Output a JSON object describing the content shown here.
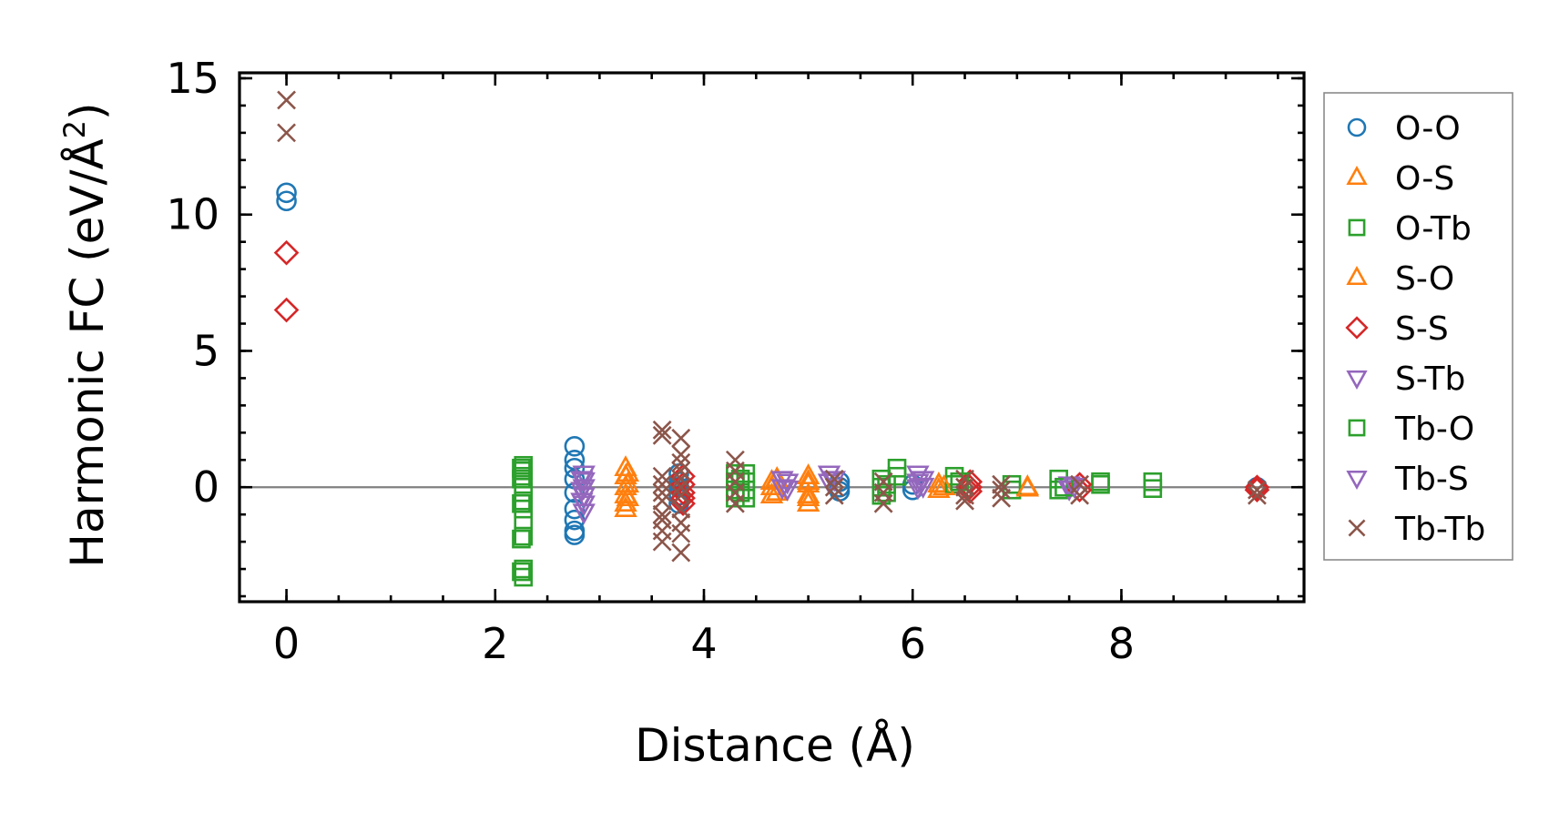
{
  "chart_data": {
    "type": "scatter",
    "title": "",
    "xlabel": "Distance (Å)",
    "ylabel": "Harmonic FC (eV/Å²)",
    "ylabel_parts": [
      "Harmonic FC (eV/Å",
      "2",
      ")"
    ],
    "xlim": [
      -0.45,
      9.75
    ],
    "ylim": [
      -4.2,
      15.2
    ],
    "xticks": [
      0,
      2,
      4,
      6,
      8
    ],
    "yticks": [
      0,
      5,
      10,
      15
    ],
    "x_minor_step": 0.5,
    "y_minor_step": 1,
    "zero_line": true,
    "grid": false,
    "legend_position": "outside-right",
    "series": [
      {
        "name": "O-O",
        "marker": "circle",
        "filled": false,
        "color": "#1f77b4",
        "points": [
          [
            0,
            10.8
          ],
          [
            0,
            10.5
          ],
          [
            2.76,
            1.5
          ],
          [
            2.76,
            1.0
          ],
          [
            2.76,
            0.7
          ],
          [
            2.76,
            0.3
          ],
          [
            2.76,
            -0.2
          ],
          [
            2.76,
            -0.8
          ],
          [
            2.76,
            -1.2
          ],
          [
            2.76,
            -1.6
          ],
          [
            2.76,
            -1.75
          ],
          [
            3.76,
            0.5
          ],
          [
            3.76,
            0.2
          ],
          [
            3.76,
            0.0
          ],
          [
            3.76,
            -0.3
          ],
          [
            3.76,
            -0.6
          ],
          [
            5.3,
            0.2
          ],
          [
            5.3,
            0.0
          ],
          [
            5.3,
            -0.15
          ],
          [
            6.0,
            0.1
          ],
          [
            6.0,
            -0.1
          ],
          [
            9.3,
            0.0
          ]
        ]
      },
      {
        "name": "O-S",
        "marker": "triangle-up",
        "filled": false,
        "color": "#ff7f0e",
        "points": [
          [
            3.25,
            0.7
          ],
          [
            3.25,
            0.4
          ],
          [
            3.25,
            0.0
          ],
          [
            3.25,
            -0.3
          ],
          [
            3.25,
            -0.6
          ],
          [
            3.25,
            -0.8
          ],
          [
            4.65,
            0.2
          ],
          [
            4.65,
            0.0
          ],
          [
            4.65,
            -0.3
          ],
          [
            5.0,
            0.4
          ],
          [
            5.0,
            0.1
          ],
          [
            5.0,
            -0.3
          ],
          [
            5.0,
            -0.6
          ],
          [
            6.25,
            0.1
          ],
          [
            6.25,
            -0.1
          ],
          [
            7.1,
            0.0
          ]
        ]
      },
      {
        "name": "O-Tb",
        "marker": "square",
        "filled": false,
        "color": "#2ca02c",
        "points": [
          [
            2.27,
            0.8
          ],
          [
            2.27,
            0.6
          ],
          [
            2.27,
            0.4
          ],
          [
            2.27,
            0.1
          ],
          [
            2.27,
            -0.2
          ],
          [
            2.27,
            -0.5
          ],
          [
            2.27,
            -0.8
          ],
          [
            2.27,
            -1.2
          ],
          [
            2.27,
            -1.8
          ],
          [
            2.27,
            -3.0
          ],
          [
            2.27,
            -3.3
          ],
          [
            4.3,
            0.5
          ],
          [
            4.3,
            0.2
          ],
          [
            4.3,
            -0.1
          ],
          [
            4.3,
            -0.4
          ],
          [
            4.4,
            0.5
          ],
          [
            4.4,
            0.2
          ],
          [
            4.4,
            -0.1
          ],
          [
            4.4,
            -0.4
          ],
          [
            5.7,
            0.3
          ],
          [
            5.7,
            0.0
          ],
          [
            5.7,
            -0.3
          ],
          [
            5.85,
            0.7
          ],
          [
            5.85,
            0.4
          ],
          [
            6.4,
            0.4
          ],
          [
            6.4,
            0.1
          ],
          [
            6.95,
            0.1
          ],
          [
            6.95,
            -0.1
          ],
          [
            7.4,
            0.3
          ],
          [
            7.4,
            -0.1
          ],
          [
            7.8,
            0.2
          ],
          [
            7.8,
            0.1
          ],
          [
            8.3,
            0.2
          ],
          [
            8.3,
            -0.05
          ]
        ]
      },
      {
        "name": "S-O",
        "marker": "triangle-up",
        "filled": false,
        "color": "#ff7f0e",
        "points": [
          [
            3.27,
            0.5
          ],
          [
            3.27,
            0.1
          ],
          [
            3.27,
            -0.4
          ],
          [
            4.7,
            0.3
          ],
          [
            4.7,
            -0.2
          ],
          [
            5.0,
            0.2
          ],
          [
            5.0,
            -0.4
          ],
          [
            6.3,
            0.0
          ],
          [
            7.1,
            -0.05
          ]
        ]
      },
      {
        "name": "S-S",
        "marker": "diamond",
        "filled": false,
        "color": "#d62728",
        "points": [
          [
            0,
            8.6
          ],
          [
            0,
            6.5
          ],
          [
            3.8,
            0.4
          ],
          [
            3.8,
            0.1
          ],
          [
            3.8,
            -0.2
          ],
          [
            3.8,
            -0.4
          ],
          [
            3.8,
            -0.6
          ],
          [
            6.55,
            0.2
          ],
          [
            6.55,
            0.0
          ],
          [
            6.55,
            -0.15
          ],
          [
            7.6,
            0.1
          ],
          [
            7.6,
            -0.1
          ],
          [
            9.3,
            0.0
          ],
          [
            9.3,
            -0.1
          ]
        ]
      },
      {
        "name": "S-Tb",
        "marker": "triangle-down",
        "filled": false,
        "color": "#9467bd",
        "points": [
          [
            2.85,
            0.5
          ],
          [
            2.85,
            0.25
          ],
          [
            2.85,
            0.0
          ],
          [
            2.85,
            -0.3
          ],
          [
            2.85,
            -0.6
          ],
          [
            2.85,
            -0.9
          ],
          [
            4.75,
            0.3
          ],
          [
            4.75,
            0.0
          ],
          [
            5.2,
            0.5
          ],
          [
            5.2,
            0.2
          ],
          [
            6.05,
            0.5
          ],
          [
            6.05,
            0.2
          ],
          [
            6.05,
            0.0
          ],
          [
            7.5,
            0.1
          ],
          [
            7.5,
            -0.05
          ]
        ]
      },
      {
        "name": "Tb-O",
        "marker": "square",
        "filled": false,
        "color": "#2ca02c",
        "points": [
          [
            2.25,
            0.7
          ],
          [
            2.25,
            0.3
          ],
          [
            2.25,
            -0.6
          ],
          [
            2.25,
            -1.9
          ],
          [
            2.25,
            -3.1
          ],
          [
            4.35,
            0.3
          ],
          [
            4.35,
            -0.2
          ],
          [
            5.75,
            0.1
          ],
          [
            5.75,
            -0.2
          ],
          [
            6.45,
            0.2
          ],
          [
            7.45,
            0.0
          ]
        ]
      },
      {
        "name": "Tb-S",
        "marker": "triangle-down",
        "filled": false,
        "color": "#9467bd",
        "points": [
          [
            2.83,
            0.3
          ],
          [
            2.83,
            -0.1
          ],
          [
            2.83,
            -0.5
          ],
          [
            4.8,
            0.2
          ],
          [
            4.8,
            -0.05
          ],
          [
            5.25,
            0.3
          ],
          [
            6.1,
            0.3
          ],
          [
            6.1,
            0.05
          ],
          [
            7.55,
            0.05
          ]
        ]
      },
      {
        "name": "Tb-Tb",
        "marker": "x",
        "filled": false,
        "color": "#8c564b",
        "points": [
          [
            0,
            14.2
          ],
          [
            0,
            13.0
          ],
          [
            3.6,
            2.1
          ],
          [
            3.6,
            1.9
          ],
          [
            3.6,
            0.4
          ],
          [
            3.6,
            0.1
          ],
          [
            3.6,
            -0.2
          ],
          [
            3.6,
            -0.5
          ],
          [
            3.6,
            -1.0
          ],
          [
            3.6,
            -1.2
          ],
          [
            3.6,
            -1.6
          ],
          [
            3.6,
            -2.0
          ],
          [
            3.78,
            1.8
          ],
          [
            3.78,
            1.2
          ],
          [
            3.78,
            0.9
          ],
          [
            3.78,
            0.6
          ],
          [
            3.78,
            0.3
          ],
          [
            3.78,
            0.0
          ],
          [
            3.78,
            -0.3
          ],
          [
            3.78,
            -0.8
          ],
          [
            3.78,
            -1.3
          ],
          [
            3.78,
            -1.7
          ],
          [
            3.78,
            -2.4
          ],
          [
            4.3,
            1.0
          ],
          [
            4.3,
            0.6
          ],
          [
            4.3,
            0.2
          ],
          [
            4.3,
            -0.2
          ],
          [
            4.3,
            -0.6
          ],
          [
            5.25,
            0.3
          ],
          [
            5.25,
            0.0
          ],
          [
            5.25,
            -0.3
          ],
          [
            5.72,
            0.2
          ],
          [
            5.72,
            -0.2
          ],
          [
            5.72,
            -0.6
          ],
          [
            6.5,
            0.3
          ],
          [
            6.5,
            0.0
          ],
          [
            6.5,
            -0.3
          ],
          [
            6.5,
            -0.5
          ],
          [
            6.85,
            0.1
          ],
          [
            6.85,
            -0.1
          ],
          [
            6.85,
            -0.4
          ],
          [
            7.6,
            0.1
          ],
          [
            7.6,
            -0.3
          ],
          [
            9.3,
            -0.1
          ],
          [
            9.3,
            -0.3
          ]
        ]
      }
    ]
  }
}
